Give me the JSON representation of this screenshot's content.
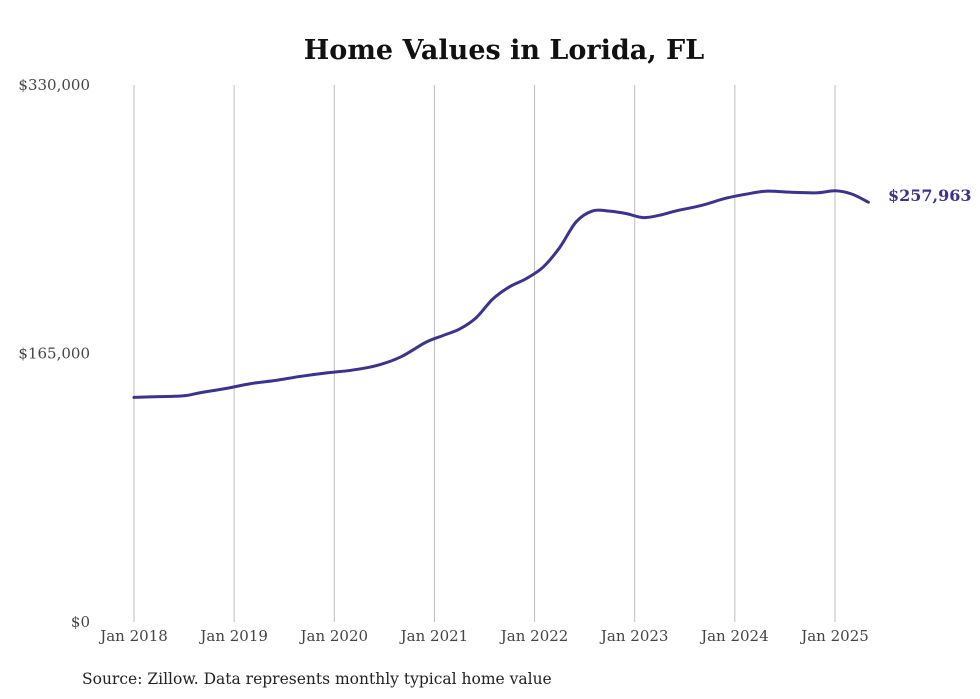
{
  "chart_data": {
    "type": "line",
    "title": "Home Values in Lorida, FL",
    "source": "Source: Zillow. Data represents monthly typical home value",
    "y_ticks": [
      "$0",
      "$165,000",
      "$330,000"
    ],
    "ylim": [
      0,
      330000
    ],
    "x_ticks": [
      "Jan 2018",
      "Jan 2019",
      "Jan 2020",
      "Jan 2021",
      "Jan 2022",
      "Jan 2023",
      "Jan 2024",
      "Jan 2025"
    ],
    "grid": "vertical",
    "line_color": "#3a3391",
    "end_label": "$257,963",
    "series": [
      {
        "x": [
          "2018-01",
          "2018-04",
          "2018-07",
          "2018-09",
          "2018-12",
          "2019-03",
          "2019-06",
          "2019-09",
          "2019-12",
          "2020-03",
          "2020-06",
          "2020-09",
          "2020-12",
          "2021-02",
          "2021-04",
          "2021-06",
          "2021-08",
          "2021-10",
          "2021-12",
          "2022-02",
          "2022-04",
          "2022-06",
          "2022-08",
          "2022-10",
          "2022-12",
          "2023-02",
          "2023-04",
          "2023-06",
          "2023-09",
          "2023-12",
          "2024-03",
          "2024-05",
          "2024-08",
          "2024-11",
          "2025-01",
          "2025-03",
          "2025-05"
        ],
        "y": [
          138000,
          138500,
          139000,
          141000,
          143500,
          146500,
          148500,
          151000,
          153000,
          154700,
          157500,
          163000,
          172000,
          176000,
          180000,
          187000,
          198500,
          206000,
          211000,
          218000,
          230000,
          246000,
          252700,
          252500,
          251000,
          248500,
          250000,
          252700,
          256000,
          260500,
          263500,
          264800,
          264000,
          263800,
          265000,
          263000,
          257963
        ]
      }
    ]
  }
}
